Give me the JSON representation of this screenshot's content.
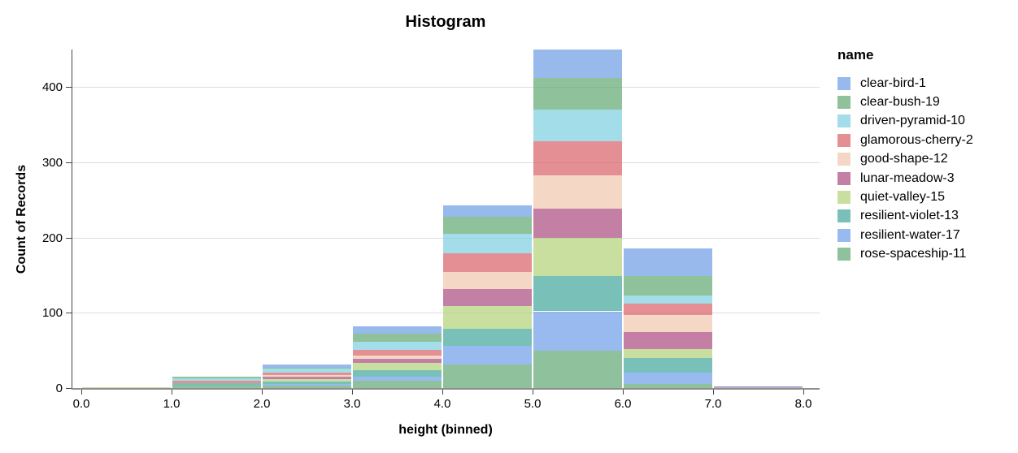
{
  "chart_data": {
    "type": "bar",
    "subtype": "stacked-histogram",
    "title": "Histogram",
    "xlabel": "height (binned)",
    "ylabel": "Count of Records",
    "legend_title": "name",
    "legend_position": "right",
    "grid": true,
    "bin_edges": [
      0,
      1,
      2,
      3,
      4,
      5,
      6,
      7,
      8
    ],
    "x_tick_labels": [
      "0.0",
      "1.0",
      "2.0",
      "3.0",
      "4.0",
      "5.0",
      "6.0",
      "7.0",
      "8.0"
    ],
    "y_ticks": [
      0,
      100,
      200,
      300,
      400
    ],
    "ylim": [
      0,
      450
    ],
    "bin_totals": [
      1,
      15,
      31,
      82,
      243,
      450,
      186,
      2
    ],
    "series": [
      {
        "name": "clear-bird-1",
        "color": "#6c9be4",
        "values": [
          0,
          0,
          4,
          10,
          15,
          38,
          37,
          0
        ]
      },
      {
        "name": "clear-bush-19",
        "color": "#5fa671",
        "values": [
          0,
          2,
          1,
          10,
          23,
          42,
          26,
          0
        ]
      },
      {
        "name": "driven-pyramid-10",
        "color": "#7acedf",
        "values": [
          0,
          3,
          5,
          11,
          26,
          42,
          11,
          0
        ]
      },
      {
        "name": "glamorous-cherry-2",
        "color": "#d95f66",
        "values": [
          0,
          3,
          4,
          8,
          25,
          45,
          15,
          0
        ]
      },
      {
        "name": "good-shape-12",
        "color": "#efc6ab",
        "values": [
          0,
          0,
          2,
          4,
          22,
          45,
          22,
          0
        ]
      },
      {
        "name": "lunar-meadow-3",
        "color": "#ab4a7e",
        "values": [
          0,
          0,
          3,
          5,
          23,
          38,
          23,
          1
        ]
      },
      {
        "name": "quiet-valley-15",
        "color": "#b0d177",
        "values": [
          1,
          0,
          3,
          10,
          30,
          51,
          12,
          0
        ]
      },
      {
        "name": "resilient-violet-13",
        "color": "#40a59a",
        "values": [
          0,
          4,
          4,
          9,
          23,
          47,
          19,
          0
        ]
      },
      {
        "name": "resilient-water-17",
        "color": "#6c9ce7",
        "values": [
          0,
          0,
          2,
          5,
          25,
          52,
          16,
          1
        ]
      },
      {
        "name": "rose-spaceship-11",
        "color": "#5fa773",
        "values": [
          0,
          3,
          3,
          10,
          31,
          50,
          5,
          0
        ]
      }
    ]
  }
}
